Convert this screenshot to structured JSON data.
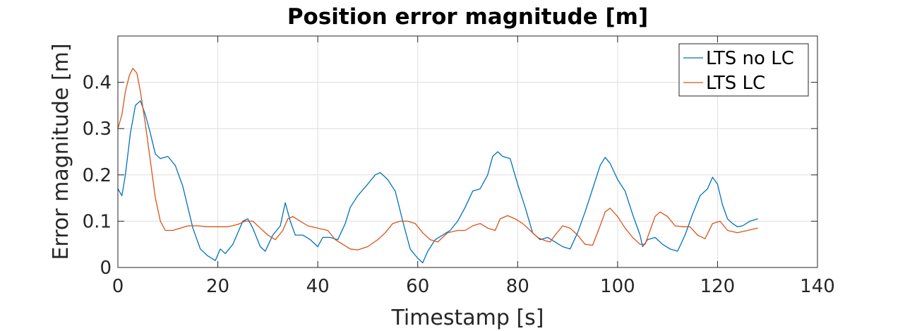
{
  "chart_data": {
    "type": "line",
    "title": "Position error magnitude [m]",
    "xlabel": "Timestamp [s]",
    "ylabel": "Error magnitude [m]",
    "xlim": [
      0,
      140
    ],
    "ylim": [
      0,
      0.5
    ],
    "xticks": [
      0,
      20,
      40,
      60,
      80,
      100,
      120,
      140
    ],
    "yticks": [
      0,
      0.1,
      0.2,
      0.3,
      0.4
    ],
    "xtick_labels": [
      "0",
      "20",
      "40",
      "60",
      "80",
      "100",
      "120",
      "140"
    ],
    "ytick_labels": [
      "0",
      "0.1",
      "0.2",
      "0.3",
      "0.4"
    ],
    "grid": true,
    "legend_position": "top-right",
    "series": [
      {
        "name": "LTS no LC",
        "color": "#0072BD",
        "x": [
          0,
          0.8,
          1.5,
          2.5,
          3.5,
          4.5,
          5.5,
          6.5,
          7.5,
          8.5,
          10,
          11.5,
          13,
          15,
          16.5,
          18,
          19.5,
          20.5,
          21.5,
          23,
          25,
          26,
          27,
          28.5,
          29.5,
          31,
          32.5,
          33.5,
          34.5,
          35.5,
          37,
          38.5,
          40,
          41,
          42.5,
          44,
          45.5,
          46.5,
          48,
          50,
          51.5,
          52.5,
          54,
          55.5,
          57,
          58.5,
          60,
          61,
          62,
          63.5,
          65,
          66.5,
          68,
          69.5,
          71,
          72.5,
          74,
          75,
          76,
          77,
          78.5,
          80,
          81.5,
          83,
          84.5,
          86,
          87.5,
          89,
          90.5,
          92,
          93.5,
          95,
          96.5,
          97.5,
          98.5,
          100,
          101.5,
          103,
          104.5,
          105,
          106,
          107.5,
          109,
          110.5,
          112,
          113.5,
          115,
          116.5,
          118,
          119,
          120,
          121,
          122,
          123,
          124,
          125,
          126.5,
          128
        ],
        "y": [
          0.17,
          0.155,
          0.2,
          0.29,
          0.35,
          0.36,
          0.33,
          0.29,
          0.245,
          0.235,
          0.24,
          0.22,
          0.175,
          0.085,
          0.04,
          0.025,
          0.015,
          0.04,
          0.03,
          0.05,
          0.1,
          0.105,
          0.085,
          0.045,
          0.035,
          0.07,
          0.09,
          0.14,
          0.1,
          0.07,
          0.07,
          0.06,
          0.045,
          0.065,
          0.065,
          0.06,
          0.095,
          0.13,
          0.155,
          0.18,
          0.2,
          0.205,
          0.19,
          0.165,
          0.1,
          0.04,
          0.02,
          0.01,
          0.035,
          0.06,
          0.07,
          0.08,
          0.1,
          0.13,
          0.165,
          0.17,
          0.2,
          0.24,
          0.25,
          0.24,
          0.235,
          0.18,
          0.13,
          0.075,
          0.06,
          0.065,
          0.055,
          0.045,
          0.04,
          0.075,
          0.12,
          0.17,
          0.22,
          0.238,
          0.225,
          0.19,
          0.165,
          0.115,
          0.07,
          0.045,
          0.06,
          0.065,
          0.05,
          0.04,
          0.035,
          0.07,
          0.115,
          0.155,
          0.17,
          0.195,
          0.18,
          0.135,
          0.105,
          0.095,
          0.088,
          0.09,
          0.1,
          0.105
        ]
      },
      {
        "name": "LTS LC",
        "color": "#D95319",
        "x": [
          0,
          0.8,
          1.5,
          2.3,
          3,
          3.8,
          4.5,
          5.5,
          6.5,
          7.5,
          8.5,
          9.5,
          11,
          12.5,
          14,
          16,
          18,
          20,
          22,
          24,
          25.5,
          27,
          28.5,
          30,
          31.5,
          33,
          34,
          35,
          36.5,
          38,
          40,
          42,
          43.5,
          45,
          46.5,
          48,
          50,
          52,
          53.5,
          55,
          56.5,
          58,
          59.5,
          61,
          62.5,
          64,
          66,
          68,
          69.5,
          71,
          72.5,
          74,
          75.5,
          76.5,
          78,
          79.5,
          81,
          82.5,
          84,
          85.5,
          86.5,
          87.5,
          89,
          90.5,
          92,
          93.5,
          95,
          96.5,
          97.5,
          98.5,
          100,
          101.5,
          103,
          104.5,
          105.5,
          106.5,
          107.5,
          108.5,
          110,
          111.5,
          113,
          114.5,
          116,
          117.5,
          119,
          120.5,
          122,
          124,
          126,
          128
        ],
        "y": [
          0.3,
          0.33,
          0.38,
          0.415,
          0.43,
          0.42,
          0.38,
          0.31,
          0.23,
          0.15,
          0.1,
          0.08,
          0.08,
          0.085,
          0.09,
          0.09,
          0.088,
          0.088,
          0.088,
          0.093,
          0.1,
          0.1,
          0.085,
          0.07,
          0.06,
          0.08,
          0.105,
          0.11,
          0.1,
          0.09,
          0.085,
          0.08,
          0.06,
          0.05,
          0.04,
          0.038,
          0.045,
          0.06,
          0.075,
          0.095,
          0.1,
          0.1,
          0.095,
          0.075,
          0.06,
          0.055,
          0.075,
          0.08,
          0.08,
          0.09,
          0.095,
          0.085,
          0.08,
          0.105,
          0.112,
          0.105,
          0.095,
          0.08,
          0.065,
          0.058,
          0.055,
          0.07,
          0.09,
          0.085,
          0.07,
          0.05,
          0.048,
          0.09,
          0.12,
          0.128,
          0.11,
          0.085,
          0.065,
          0.05,
          0.05,
          0.08,
          0.11,
          0.12,
          0.11,
          0.09,
          0.088,
          0.088,
          0.07,
          0.062,
          0.095,
          0.1,
          0.08,
          0.075,
          0.08,
          0.085
        ]
      }
    ]
  }
}
